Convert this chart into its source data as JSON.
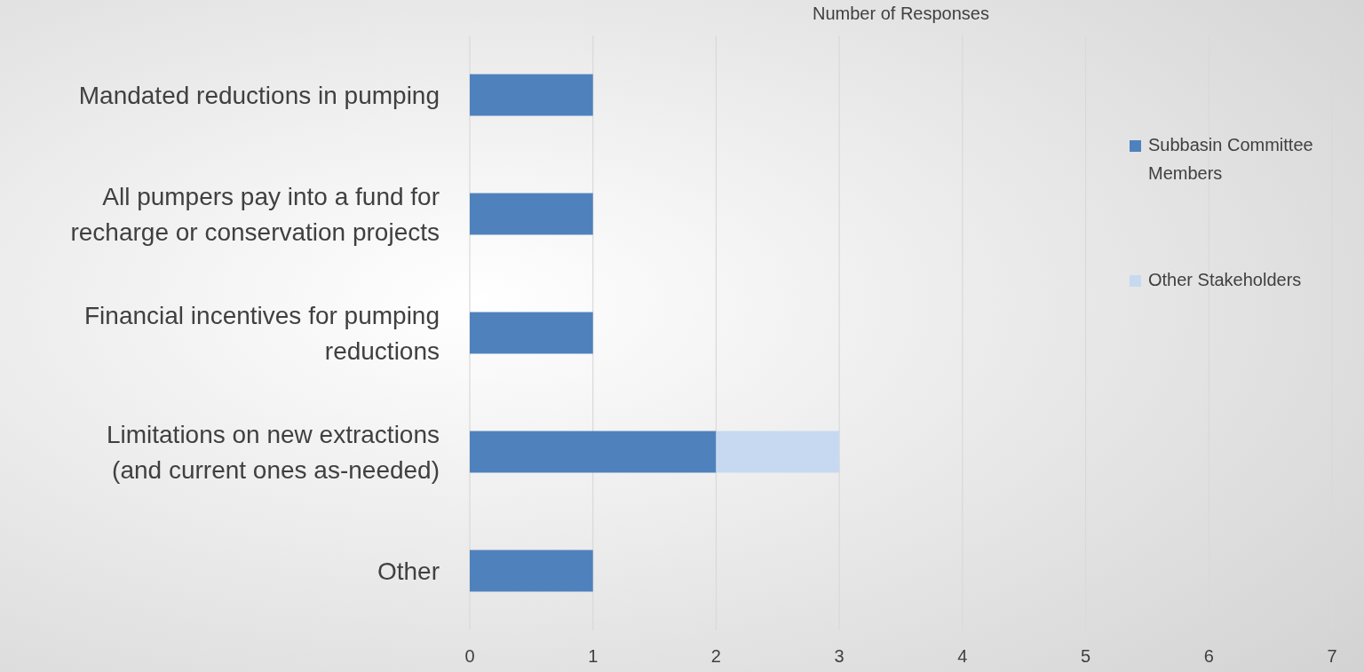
{
  "chart_data": {
    "type": "bar",
    "orientation": "horizontal",
    "stacked": true,
    "title": "Number of Responses",
    "categories": [
      "Mandated reductions in pumping",
      "All pumpers pay into a fund for recharge or conservation projects",
      "Financial incentives for pumping reductions",
      "Limitations on new extractions (and current ones as-needed)",
      "Other"
    ],
    "series": [
      {
        "name": "Subbasin Committee Members",
        "color": "#4f81bd",
        "values": [
          1,
          1,
          1,
          2,
          1
        ]
      },
      {
        "name": "Other Stakeholders",
        "color": "#c6d9f1",
        "values": [
          0,
          0,
          0,
          1,
          0
        ]
      }
    ],
    "xlim": [
      0,
      7
    ],
    "xticks": [
      0,
      1,
      2,
      3,
      4,
      5,
      6,
      7
    ],
    "grid": "x",
    "legend": "right"
  }
}
